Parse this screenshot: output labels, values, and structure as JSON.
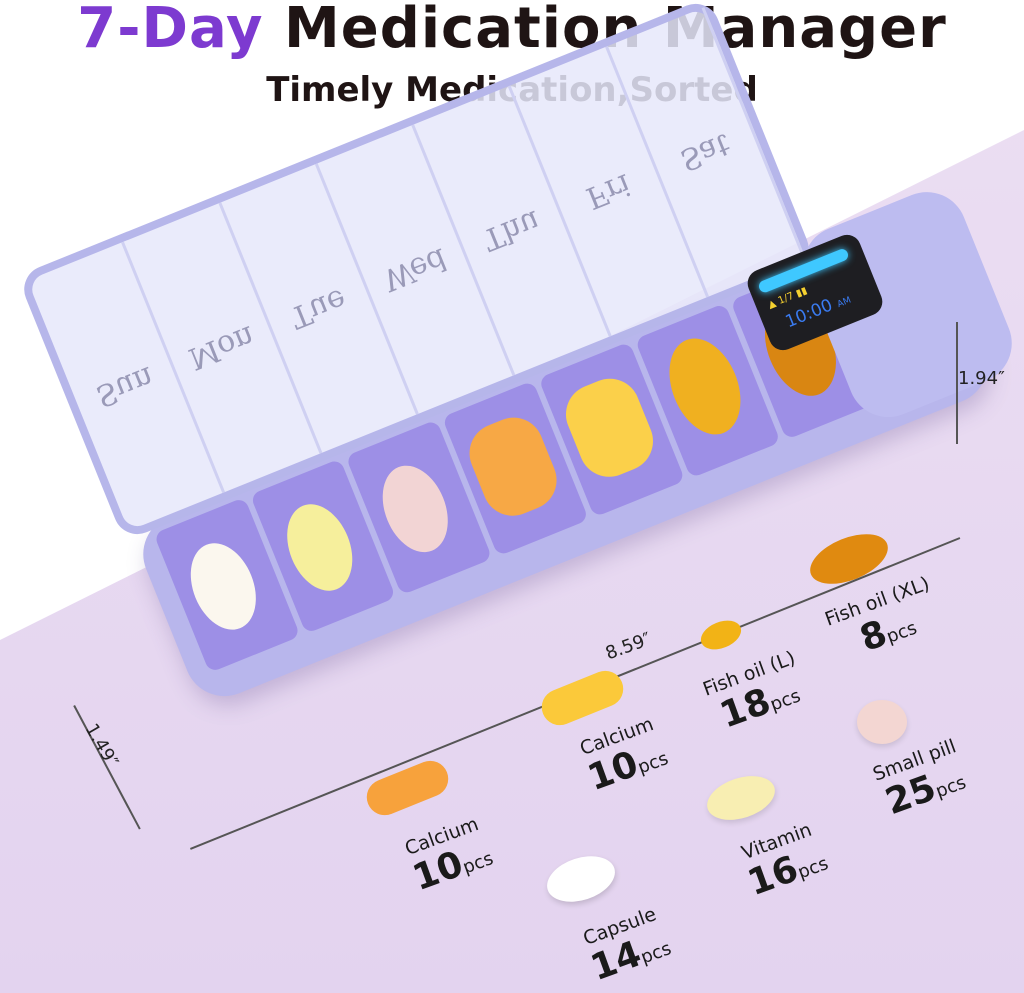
{
  "header": {
    "title_accent": "7-Day",
    "title_rest": " Medication Manager",
    "subtitle": "Timely Medication,Sorted"
  },
  "days": [
    "Sun",
    "Mon",
    "Tue",
    "Wed",
    "Thu",
    "Fri",
    "Sat"
  ],
  "device_screen": {
    "day_counter": "1/7",
    "time": "10:00",
    "ampm": "AM"
  },
  "dimensions": {
    "height": "1.94″",
    "length": "8.59″",
    "width": "1.49″"
  },
  "pills": [
    {
      "name": "Calcium",
      "count": "10",
      "unit": "pcs",
      "color": "#f7a23c"
    },
    {
      "name": "Calcium",
      "count": "10",
      "unit": "pcs",
      "color": "#fbc93a"
    },
    {
      "name": "Fish oil (L)",
      "count": "18",
      "unit": "pcs",
      "color": "#f2b316"
    },
    {
      "name": "Fish oil (XL)",
      "count": "8",
      "unit": "pcs",
      "color": "#e08a10"
    },
    {
      "name": "Capsule",
      "count": "14",
      "unit": "pcs",
      "color": "#ffffff"
    },
    {
      "name": "Vitamin",
      "count": "16",
      "unit": "pcs",
      "color": "#f8eeb2"
    },
    {
      "name": "Small pill",
      "count": "25",
      "unit": "pcs",
      "color": "#f3d6d2"
    }
  ],
  "colors": {
    "accent": "#7d3ad0",
    "box": "#b8b6ec",
    "floor": "#e6d8f1"
  }
}
